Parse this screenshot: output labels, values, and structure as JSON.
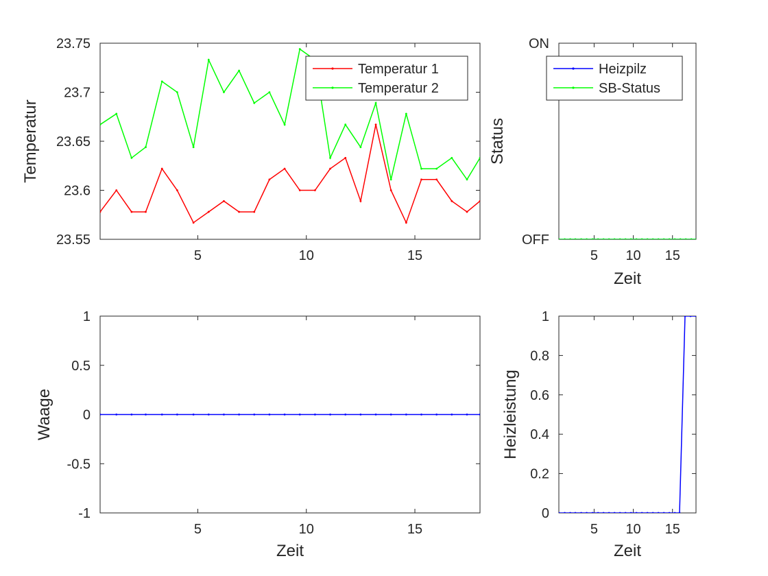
{
  "colors": {
    "red": "#ff0000",
    "green": "#00ff00",
    "blue": "#0000ff",
    "axis": "#262626"
  },
  "chart_data": [
    {
      "id": "temperature",
      "type": "line",
      "title": "",
      "xlabel": "",
      "ylabel": "Temperatur",
      "xlim": [
        0.5,
        18
      ],
      "ylim": [
        23.55,
        23.75
      ],
      "xticks": [
        5,
        10,
        15
      ],
      "xtick_labels": [
        "5",
        "10",
        "15"
      ],
      "yticks": [
        23.55,
        23.6,
        23.65,
        23.7,
        23.75
      ],
      "ytick_labels": [
        "23.55",
        "23.6",
        "23.65",
        "23.7",
        "23.75"
      ],
      "legend": "top-right",
      "x": [
        0.5,
        1.25,
        1.95,
        2.6,
        3.35,
        4.05,
        4.8,
        5.5,
        6.2,
        6.9,
        7.6,
        8.3,
        9.0,
        9.7,
        10.4,
        11.1,
        11.8,
        12.5,
        13.2,
        13.9,
        14.6,
        15.3,
        16.0,
        16.7,
        17.4,
        18.0
      ],
      "series": [
        {
          "name": "Temperatur 1",
          "color": "#ff0000",
          "values": [
            23.578,
            23.6,
            23.578,
            23.578,
            23.622,
            23.6,
            23.567,
            23.578,
            23.589,
            23.578,
            23.578,
            23.611,
            23.622,
            23.6,
            23.6,
            23.622,
            23.633,
            23.589,
            23.667,
            23.6,
            23.567,
            23.611,
            23.611,
            23.589,
            23.578,
            23.589
          ]
        },
        {
          "name": "Temperatur 2",
          "color": "#00ff00",
          "values": [
            23.667,
            23.678,
            23.633,
            23.644,
            23.711,
            23.7,
            23.644,
            23.733,
            23.7,
            23.722,
            23.689,
            23.7,
            23.667,
            23.744,
            23.733,
            23.633,
            23.667,
            23.644,
            23.689,
            23.611,
            23.678,
            23.622,
            23.622,
            23.633,
            23.611,
            23.633
          ]
        }
      ]
    },
    {
      "id": "status",
      "type": "line",
      "title": "",
      "xlabel": "Zeit",
      "ylabel": "Status",
      "xlim": [
        0.5,
        18
      ],
      "ylim": [
        0,
        1
      ],
      "xticks": [
        5,
        10,
        15
      ],
      "xtick_labels": [
        "5",
        "10",
        "15"
      ],
      "yticks": [
        0,
        1
      ],
      "ytick_labels": [
        "OFF",
        "ON"
      ],
      "legend": "top-right",
      "x": [
        0.5,
        1.25,
        1.95,
        2.6,
        3.35,
        4.05,
        4.8,
        5.5,
        6.2,
        6.9,
        7.6,
        8.3,
        9.0,
        9.7,
        10.4,
        11.1,
        11.8,
        12.5,
        13.2,
        13.9,
        14.6,
        15.3,
        16.0,
        16.7,
        17.4,
        18.0
      ],
      "series": [
        {
          "name": "Heizpilz",
          "color": "#0000ff",
          "values": [
            0,
            0,
            0,
            0,
            0,
            0,
            0,
            0,
            0,
            0,
            0,
            0,
            0,
            0,
            0,
            0,
            0,
            0,
            0,
            0,
            0,
            0,
            0,
            0,
            0,
            0
          ]
        },
        {
          "name": "SB-Status",
          "color": "#00ff00",
          "values": [
            0,
            0,
            0,
            0,
            0,
            0,
            0,
            0,
            0,
            0,
            0,
            0,
            0,
            0,
            0,
            0,
            0,
            0,
            0,
            0,
            0,
            0,
            0,
            0,
            0,
            0
          ]
        }
      ]
    },
    {
      "id": "waage",
      "type": "line",
      "title": "",
      "xlabel": "Zeit",
      "ylabel": "Waage",
      "xlim": [
        0.5,
        18
      ],
      "ylim": [
        -1,
        1
      ],
      "xticks": [
        5,
        10,
        15
      ],
      "xtick_labels": [
        "5",
        "10",
        "15"
      ],
      "yticks": [
        -1,
        -0.5,
        0,
        0.5,
        1
      ],
      "ytick_labels": [
        "-1",
        "-0.5",
        "0",
        "0.5",
        "1"
      ],
      "legend": "none",
      "x": [
        0.5,
        1.25,
        1.95,
        2.6,
        3.35,
        4.05,
        4.8,
        5.5,
        6.2,
        6.9,
        7.6,
        8.3,
        9.0,
        9.7,
        10.4,
        11.1,
        11.8,
        12.5,
        13.2,
        13.9,
        14.6,
        15.3,
        16.0,
        16.7,
        17.4,
        18.0
      ],
      "series": [
        {
          "name": "",
          "color": "#0000ff",
          "values": [
            0,
            0,
            0,
            0,
            0,
            0,
            0,
            0,
            0,
            0,
            0,
            0,
            0,
            0,
            0,
            0,
            0,
            0,
            0,
            0,
            0,
            0,
            0,
            0,
            0,
            0
          ]
        }
      ]
    },
    {
      "id": "heizleistung",
      "type": "line",
      "title": "",
      "xlabel": "Zeit",
      "ylabel": "Heizleistung",
      "xlim": [
        0.5,
        18
      ],
      "ylim": [
        0,
        1
      ],
      "xticks": [
        5,
        10,
        15
      ],
      "xtick_labels": [
        "5",
        "10",
        "15"
      ],
      "yticks": [
        0,
        0.2,
        0.4,
        0.6,
        0.8,
        1
      ],
      "ytick_labels": [
        "0",
        "0.2",
        "0.4",
        "0.6",
        "0.8",
        "1"
      ],
      "legend": "none",
      "x": [
        0.5,
        1.25,
        1.95,
        2.6,
        3.35,
        4.05,
        4.8,
        5.5,
        6.2,
        6.9,
        7.6,
        8.3,
        9.0,
        9.7,
        10.4,
        11.1,
        11.8,
        12.5,
        13.2,
        13.9,
        14.6,
        15.3,
        15.9,
        16.6,
        17.3,
        18.0
      ],
      "series": [
        {
          "name": "",
          "color": "#0000ff",
          "values": [
            0,
            0,
            0,
            0,
            0,
            0,
            0,
            0,
            0,
            0,
            0,
            0,
            0,
            0,
            0,
            0,
            0,
            0,
            0,
            0,
            0,
            0,
            0,
            1,
            1,
            1
          ]
        }
      ]
    }
  ]
}
